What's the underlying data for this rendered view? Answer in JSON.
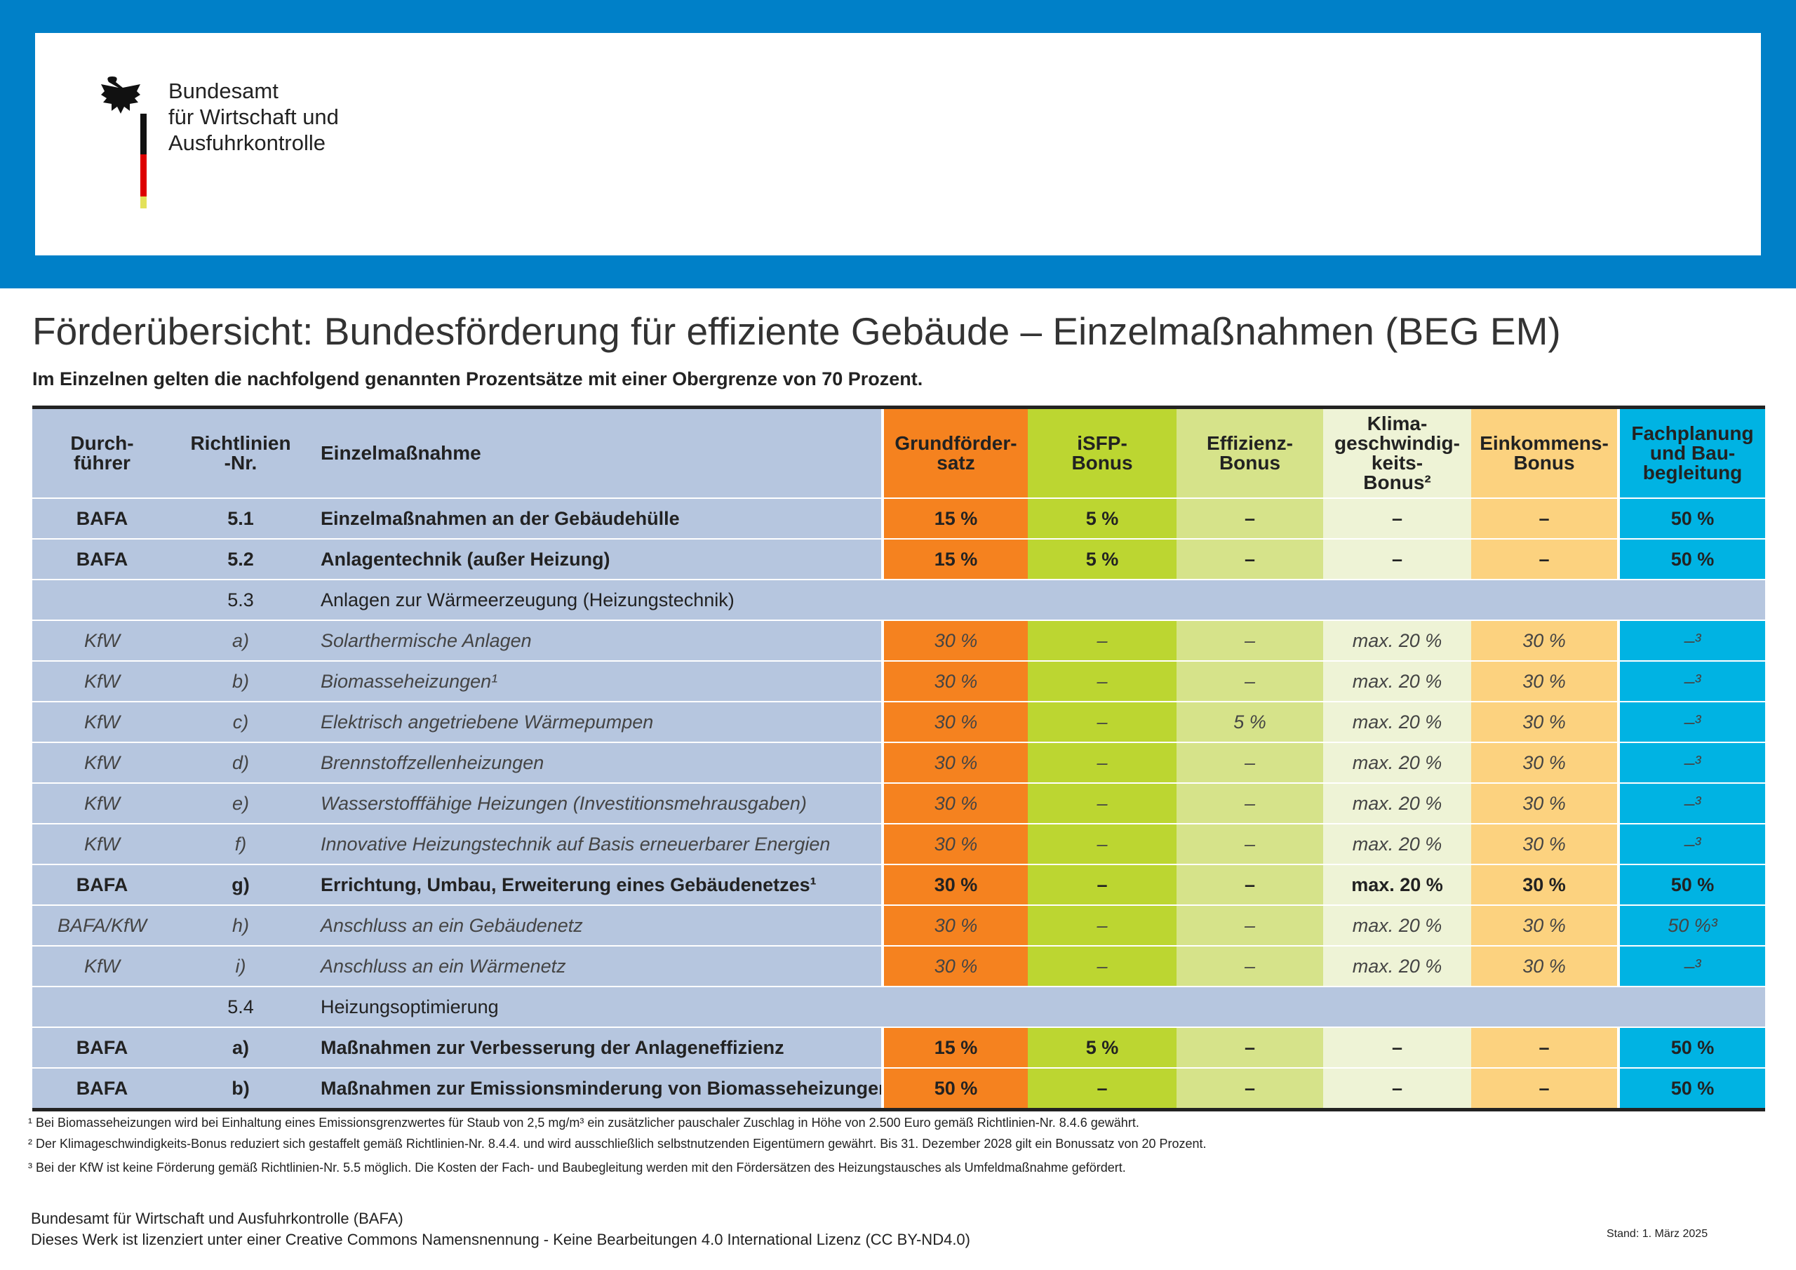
{
  "header": {
    "logo_text": "Bundesamt\nfür Wirtschaft und\nAusfuhrkontrolle"
  },
  "title": "Förderübersicht: Bundesförderung für effiziente Gebäude – Einzelmaßnahmen (BEG EM)",
  "subtitle": "Im Einzelnen gelten die nachfolgend genannten Prozentsätze mit einer Obergrenze von 70 Prozent.",
  "table": {
    "columns": [
      "Durch-\nführer",
      "Richtlinien\n-Nr.",
      "Einzelmaßnahme",
      "Grundförder-\nsatz",
      "iSFP-\nBonus",
      "Effizienz-\nBonus",
      "Klima-\ngeschwindig-\nkeits-\nBonus²",
      "Einkommens-\nBonus",
      "Fachplanung\nund Bau-\nbegleitung"
    ],
    "rows": [
      {
        "style": "bold",
        "provider": "BAFA",
        "number": "5.1",
        "measure": "Einzelmaßnahmen an der Gebäudehülle",
        "values": [
          "15 %",
          "5 %",
          "–",
          "–",
          "–",
          "50 %"
        ]
      },
      {
        "style": "bold",
        "provider": "BAFA",
        "number": "5.2",
        "measure": "Anlagentechnik (außer Heizung)",
        "values": [
          "15 %",
          "5 %",
          "–",
          "–",
          "–",
          "50 %"
        ]
      },
      {
        "style": "group",
        "number": "5.3",
        "measure": "Anlagen zur Wärmeerzeugung (Heizungstechnik)"
      },
      {
        "style": "italic",
        "provider": "KfW",
        "number": "a)",
        "measure": "Solarthermische Anlagen",
        "values": [
          "30 %",
          "–",
          "–",
          "max. 20 %",
          "30 %",
          "–³"
        ]
      },
      {
        "style": "italic",
        "provider": "KfW",
        "number": "b)",
        "measure": "Biomasseheizungen¹",
        "values": [
          "30 %",
          "–",
          "–",
          "max. 20 %",
          "30 %",
          "–³"
        ]
      },
      {
        "style": "italic",
        "provider": "KfW",
        "number": "c)",
        "measure": "Elektrisch angetriebene Wärmepumpen",
        "values": [
          "30 %",
          "–",
          "5 %",
          "max. 20 %",
          "30 %",
          "–³"
        ]
      },
      {
        "style": "italic",
        "provider": "KfW",
        "number": "d)",
        "measure": "Brennstoffzellenheizungen",
        "values": [
          "30 %",
          "–",
          "–",
          "max. 20 %",
          "30 %",
          "–³"
        ]
      },
      {
        "style": "italic",
        "provider": "KfW",
        "number": "e)",
        "measure": "Wasserstofffähige Heizungen (Investitionsmehrausgaben)",
        "values": [
          "30 %",
          "–",
          "–",
          "max. 20 %",
          "30 %",
          "–³"
        ]
      },
      {
        "style": "italic",
        "provider": "KfW",
        "number": "f)",
        "measure": "Innovative Heizungstechnik auf Basis erneuerbarer Energien",
        "values": [
          "30 %",
          "–",
          "–",
          "max. 20 %",
          "30 %",
          "–³"
        ]
      },
      {
        "style": "bold",
        "provider": "BAFA",
        "number": "g)",
        "measure": "Errichtung, Umbau, Erweiterung eines Gebäudenetzes¹",
        "values": [
          "30 %",
          "–",
          "–",
          "max. 20 %",
          "30 %",
          "50 %"
        ]
      },
      {
        "style": "italic",
        "provider": "BAFA/KfW",
        "number": "h)",
        "measure": "Anschluss an ein Gebäudenetz",
        "values": [
          "30 %",
          "–",
          "–",
          "max. 20 %",
          "30 %",
          "50 %³"
        ]
      },
      {
        "style": "italic",
        "provider": "KfW",
        "number": "i)",
        "measure": "Anschluss an ein Wärmenetz",
        "values": [
          "30 %",
          "–",
          "–",
          "max. 20 %",
          "30 %",
          "–³"
        ]
      },
      {
        "style": "group",
        "number": "5.4",
        "measure": "Heizungsoptimierung"
      },
      {
        "style": "bold",
        "provider": "BAFA",
        "number": "a)",
        "measure": "Maßnahmen zur Verbesserung der Anlageneffizienz",
        "values": [
          "15 %",
          "5 %",
          "–",
          "–",
          "–",
          "50 %"
        ]
      },
      {
        "style": "bold",
        "provider": "BAFA",
        "number": "b)",
        "measure": "Maßnahmen zur Emissionsminderung von Biomasseheizungen",
        "values": [
          "50 %",
          "–",
          "–",
          "–",
          "–",
          "50 %"
        ]
      }
    ]
  },
  "footnotes": [
    "¹ Bei Biomasseheizungen wird bei Einhaltung eines Emissionsgrenzwertes für Staub von 2,5 mg/m³ ein zusätzlicher pauschaler Zuschlag in Höhe von 2.500 Euro gemäß Richtlinien-Nr. 8.4.6 gewährt.",
    "² Der Klimageschwindigkeits-Bonus reduziert sich gestaffelt gemäß Richtlinien-Nr. 8.4.4. und wird ausschließlich selbstnutzenden Eigentümern gewährt. Bis 31. Dezember 2028 gilt ein Bonussatz von 20 Prozent.",
    "³ Bei der KfW ist keine Förderung gemäß Richtlinien-Nr. 5.5 möglich. Die Kosten der Fach- und Baubegleitung werden mit den Fördersätzen des Heizungstausches als Umfeldmaßnahme gefördert."
  ],
  "footer": {
    "publisher": "Bundesamt für Wirtschaft und Ausfuhrkontrolle (BAFA)",
    "license": "Dieses Werk ist lizenziert unter einer Creative Commons Namensnennung - Keine Bearbeitungen 4.0 International Lizenz (CC BY-ND4.0)",
    "date": "Stand: 1. März 2025"
  }
}
